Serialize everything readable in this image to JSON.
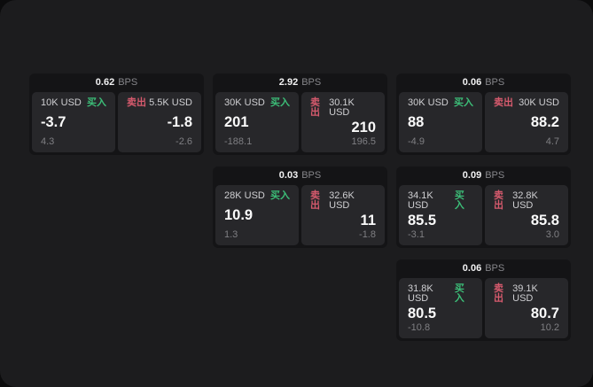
{
  "colors": {
    "window_bg": "#1c1c1e",
    "card_bg": "#141416",
    "panel_bg": "#27272a",
    "buy_green": "#3cbe78",
    "sell_red": "#d65a6d"
  },
  "cards": [
    {
      "bps": "0.62",
      "unit": "BPS",
      "buy": {
        "amount": "10K USD",
        "label": "买入",
        "price": "-3.7",
        "change": "4.3"
      },
      "sell": {
        "label": "卖出",
        "amount": "5.5K USD",
        "price": "-1.8",
        "change": "-2.6"
      }
    },
    {
      "bps": "2.92",
      "unit": "BPS",
      "buy": {
        "amount": "30K USD",
        "label": "买入",
        "price": "201",
        "change": "-188.1"
      },
      "sell": {
        "label": "卖出",
        "amount": "30.1K USD",
        "price": "210",
        "change": "196.5"
      }
    },
    {
      "bps": "0.06",
      "unit": "BPS",
      "buy": {
        "amount": "30K USD",
        "label": "买入",
        "price": "88",
        "change": "-4.9"
      },
      "sell": {
        "label": "卖出",
        "amount": "30K USD",
        "price": "88.2",
        "change": "4.7"
      }
    },
    {
      "bps": "0.03",
      "unit": "BPS",
      "buy": {
        "amount": "28K USD",
        "label": "买入",
        "price": "10.9",
        "change": "1.3"
      },
      "sell": {
        "label": "卖出",
        "amount": "32.6K USD",
        "price": "11",
        "change": "-1.8"
      }
    },
    {
      "bps": "0.09",
      "unit": "BPS",
      "buy": {
        "amount": "34.1K USD",
        "label": "买入",
        "price": "85.5",
        "change": "-3.1"
      },
      "sell": {
        "label": "卖出",
        "amount": "32.8K USD",
        "price": "85.8",
        "change": "3.0"
      }
    },
    {
      "bps": "0.06",
      "unit": "BPS",
      "buy": {
        "amount": "31.8K USD",
        "label": "买入",
        "price": "80.5",
        "change": "-10.8"
      },
      "sell": {
        "label": "卖出",
        "amount": "39.1K USD",
        "price": "80.7",
        "change": "10.2"
      }
    }
  ]
}
